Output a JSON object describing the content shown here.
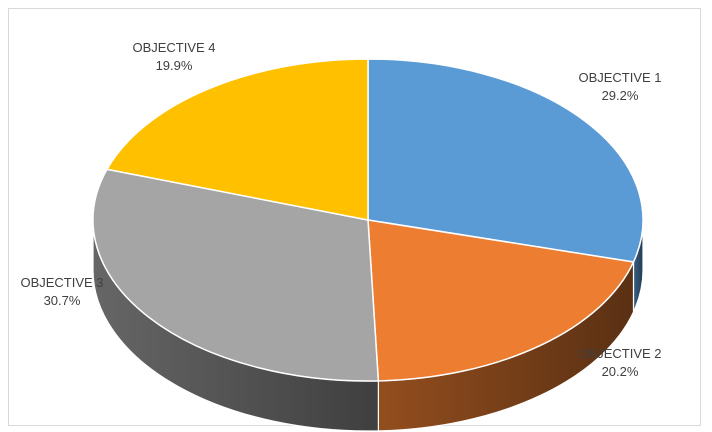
{
  "chart_data": {
    "type": "pie",
    "title": "",
    "style": "3d",
    "legend": "none",
    "slices": [
      {
        "label": "OBJECTIVE 1",
        "value_label": "29.2%",
        "value": 29.2,
        "color": "#5B9BD5"
      },
      {
        "label": "OBJECTIVE 2",
        "value_label": "20.2%",
        "value": 20.2,
        "color": "#ED7D31"
      },
      {
        "label": "OBJECTIVE 3",
        "value_label": "30.7%",
        "value": 30.7,
        "color": "#A5A5A5"
      },
      {
        "label": "OBJECTIVE 4",
        "value_label": "19.9%",
        "value": 19.9,
        "color": "#FFC000"
      }
    ]
  }
}
